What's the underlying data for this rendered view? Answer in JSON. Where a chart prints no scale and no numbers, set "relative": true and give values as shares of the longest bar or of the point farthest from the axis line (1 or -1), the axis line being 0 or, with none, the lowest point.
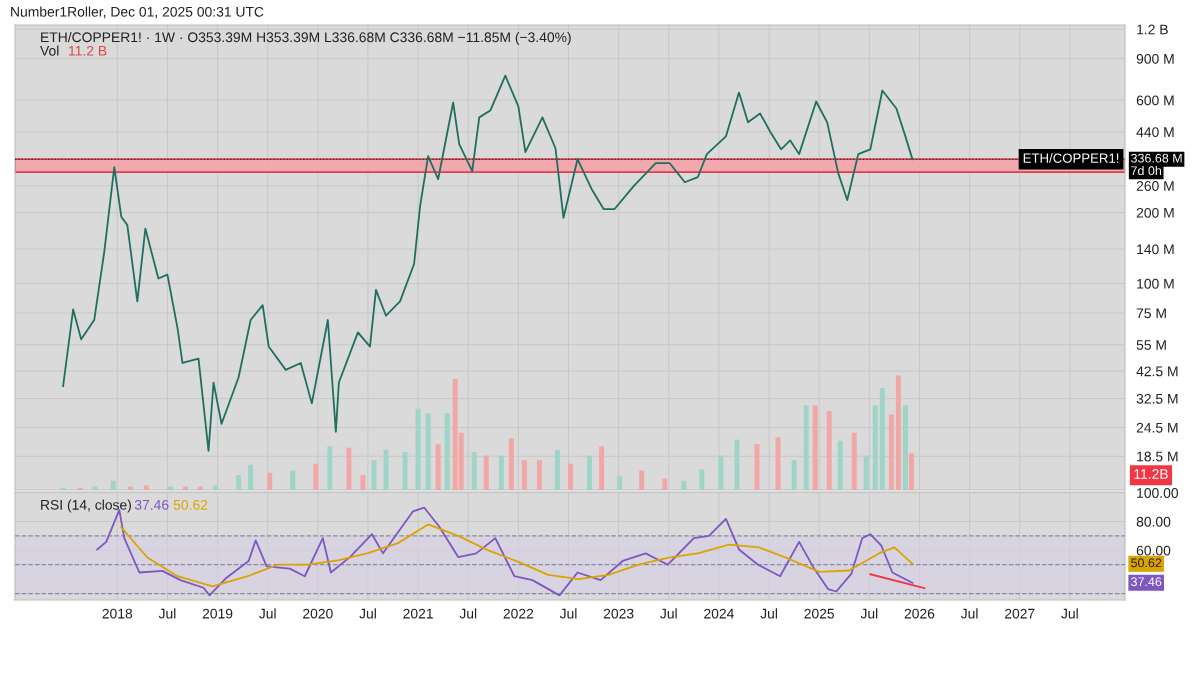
{
  "chart_data": [
    {
      "type": "line",
      "title": "ETH/COPPER1! · 1W · O353.39M H353.39M L336.68M C336.68M −11.85M (−3.40%)",
      "annotations": [
        "Number1Roller, Dec 01, 2025 00:31 UTC",
        "336.68 M",
        "7d 0h"
      ],
      "x": [
        2017.46,
        2017.56,
        2017.64,
        2017.77,
        2017.87,
        2017.97,
        2018.04,
        2018.1,
        2018.2,
        2018.28,
        2018.41,
        2018.5,
        2018.6,
        2018.65,
        2018.81,
        2018.91,
        2018.96,
        2019.04,
        2019.21,
        2019.33,
        2019.45,
        2019.51,
        2019.68,
        2019.83,
        2019.94,
        2020.1,
        2020.18,
        2020.21,
        2020.4,
        2020.52,
        2020.58,
        2020.68,
        2020.82,
        2020.96,
        2021.02,
        2021.1,
        2021.2,
        2021.35,
        2021.41,
        2021.54,
        2021.61,
        2021.72,
        2021.87,
        2022.0,
        2022.07,
        2022.24,
        2022.37,
        2022.45,
        2022.59,
        2022.73,
        2022.85,
        2022.96,
        2023.15,
        2023.37,
        2023.51,
        2023.66,
        2023.79,
        2023.88,
        2024.07,
        2024.2,
        2024.29,
        2024.41,
        2024.51,
        2024.62,
        2024.71,
        2024.8,
        2024.97,
        2025.08,
        2025.19,
        2025.28,
        2025.39,
        2025.51,
        2025.63,
        2025.77,
        2025.86,
        2025.93
      ],
      "series": [
        {
          "color": "#1f6f60",
          "values": [
            36700000.0,
            77600000.0,
            58000000.0,
            70000000.0,
            136000000.0,
            312000000.0,
            192000000.0,
            177000000.0,
            84000000.0,
            171000000.0,
            105000000.0,
            109000000.0,
            65000000.0,
            46000000.0,
            48000000.0,
            19500000.0,
            38000000.0,
            25400000.0,
            40000000.0,
            70000000.0,
            81000000.0,
            54000000.0,
            43000000.0,
            46000000.0,
            31000000.0,
            70000000.0,
            23500000.0,
            38000000.0,
            62000000.0,
            54000000.0,
            94000000.0,
            73000000.0,
            84000000.0,
            121000000.0,
            213000000.0,
            347000000.0,
            277000000.0,
            586000000.0,
            390000000.0,
            300000000.0,
            507000000.0,
            542000000.0,
            762000000.0,
            564000000.0,
            361000000.0,
            507000000.0,
            375000000.0,
            190000000.0,
            337000000.0,
            252000000.0,
            207000000.0,
            207000000.0,
            259000000.0,
            324000000.0,
            324000000.0,
            269000000.0,
            283000000.0,
            354000000.0,
            421000000.0,
            646000000.0,
            483000000.0,
            527000000.0,
            442000000.0,
            371000000.0,
            405000000.0,
            354000000.0,
            592000000.0,
            483000000.0,
            294000000.0,
            226000000.0,
            354000000.0,
            371000000.0,
            659000000.0,
            553000000.0,
            421000000.0,
            336680000.0
          ]
        }
      ],
      "log": "y",
      "ylim": [
        13300000.0,
        1250000000.0
      ],
      "yticks": [
        {
          "value": 18500000.0,
          "label": "18.5 M"
        },
        {
          "value": 24500000.0,
          "label": "24.5 M"
        },
        {
          "value": 32500000.0,
          "label": "32.5 M"
        },
        {
          "value": 42500000.0,
          "label": "42.5 M"
        },
        {
          "value": 55000000.0,
          "label": "55 M"
        },
        {
          "value": 75000000.0,
          "label": "75 M"
        },
        {
          "value": 100000000.0,
          "label": "100 M"
        },
        {
          "value": 140000000.0,
          "label": "140 M"
        },
        {
          "value": 200000000.0,
          "label": "200 M"
        },
        {
          "value": 260000000.0,
          "label": "260 M"
        },
        {
          "value": 440000000.0,
          "label": "440 M"
        },
        {
          "value": 600000000.0,
          "label": "600 M"
        },
        {
          "value": 900000000.0,
          "label": "900 M"
        },
        {
          "value": 1200000000.0,
          "label": "1.2 B"
        }
      ],
      "xlim": [
        2016.98,
        2028.05
      ],
      "xticks": [
        {
          "value": 2018,
          "label": null
        },
        {
          "value": 2018.5,
          "label": null
        },
        {
          "value": 2019,
          "label": null
        },
        {
          "value": 2019.5,
          "label": null
        },
        {
          "value": 2020,
          "label": null
        },
        {
          "value": 2020.5,
          "label": null
        },
        {
          "value": 2021,
          "label": null
        },
        {
          "value": 2021.5,
          "label": null
        },
        {
          "value": 2022,
          "label": null
        },
        {
          "value": 2022.5,
          "label": null
        },
        {
          "value": 2023,
          "label": null
        },
        {
          "value": 2023.5,
          "label": null
        },
        {
          "value": 2024,
          "label": null
        },
        {
          "value": 2024.5,
          "label": null
        },
        {
          "value": 2025,
          "label": null
        },
        {
          "value": 2025.5,
          "label": null
        },
        {
          "value": 2026,
          "label": null
        },
        {
          "value": 2026.5,
          "label": null
        },
        {
          "value": 2027,
          "label": null
        },
        {
          "value": 2027.5,
          "label": null
        }
      ],
      "tick_labels": "y",
      "grid": true,
      "ref_lines": [
        {
          "axis": "y",
          "value": 336680000.0,
          "label": "ETH/COPPER1!",
          "line_style": "dotted",
          "color": "#333333"
        }
      ],
      "bands": [
        {
          "axis": "y",
          "from": 297000000.0,
          "to": 337000000.0,
          "color": "#f4a3ab"
        }
      ]
    },
    {
      "type": "bar",
      "relative": true,
      "annotations": [
        "Vol",
        "11.2 B",
        "11.2B"
      ],
      "x": [
        2017.46,
        2017.63,
        2017.78,
        2017.96,
        2018.13,
        2018.29,
        2018.53,
        2018.68,
        2018.83,
        2018.98,
        2019.21,
        2019.33,
        2019.52,
        2019.75,
        2019.98,
        2020.12,
        2020.31,
        2020.45,
        2020.56,
        2020.68,
        2020.87,
        2021.0,
        2021.1,
        2021.2,
        2021.29,
        2021.37,
        2021.43,
        2021.56,
        2021.68,
        2021.83,
        2021.93,
        2022.06,
        2022.21,
        2022.39,
        2022.52,
        2022.71,
        2022.83,
        2023.01,
        2023.23,
        2023.46,
        2023.65,
        2023.83,
        2024.02,
        2024.18,
        2024.38,
        2024.59,
        2024.75,
        2024.87,
        2024.96,
        2025.1,
        2025.21,
        2025.35,
        2025.47,
        2025.56,
        2025.63,
        2025.72,
        2025.79,
        2025.86,
        2025.92
      ],
      "values": [
        0.02,
        0.02,
        0.03,
        0.08,
        0.03,
        0.04,
        0.03,
        0.03,
        0.03,
        0.04,
        0.13,
        0.22,
        0.15,
        0.17,
        0.23,
        0.38,
        0.37,
        0.13,
        0.26,
        0.35,
        0.33,
        0.71,
        0.67,
        0.4,
        0.67,
        0.97,
        0.5,
        0.33,
        0.3,
        0.3,
        0.45,
        0.26,
        0.26,
        0.35,
        0.23,
        0.3,
        0.38,
        0.12,
        0.17,
        0.1,
        0.08,
        0.18,
        0.3,
        0.44,
        0.4,
        0.46,
        0.26,
        0.74,
        0.74,
        0.69,
        0.43,
        0.5,
        0.3,
        0.74,
        0.89,
        0.66,
        1,
        0.74,
        0.32
      ],
      "colors": [
        "#9fd4c9",
        "#f2a7a7",
        "#9fd4c9",
        "#9fd4c9",
        "#f2a7a7",
        "#f2a7a7",
        "#9fd4c9",
        "#f2a7a7",
        "#f2a7a7",
        "#9fd4c9",
        "#9fd4c9",
        "#9fd4c9",
        "#f2a7a7",
        "#9fd4c9",
        "#f2a7a7",
        "#9fd4c9",
        "#f2a7a7",
        "#f2a7a7",
        "#9fd4c9",
        "#9fd4c9",
        "#9fd4c9",
        "#9fd4c9",
        "#9fd4c9",
        "#f2a7a7",
        "#9fd4c9",
        "#f2a7a7",
        "#f2a7a7",
        "#9fd4c9",
        "#f2a7a7",
        "#9fd4c9",
        "#f2a7a7",
        "#f2a7a7",
        "#f2a7a7",
        "#9fd4c9",
        "#f2a7a7",
        "#9fd4c9",
        "#f2a7a7",
        "#9fd4c9",
        "#f2a7a7",
        "#f2a7a7",
        "#9fd4c9",
        "#9fd4c9",
        "#9fd4c9",
        "#9fd4c9",
        "#f2a7a7",
        "#f2a7a7",
        "#9fd4c9",
        "#9fd4c9",
        "#f2a7a7",
        "#f2a7a7",
        "#9fd4c9",
        "#f2a7a7",
        "#9fd4c9",
        "#9fd4c9",
        "#9fd4c9",
        "#f2a7a7",
        "#f2a7a7",
        "#9fd4c9",
        "#f2a7a7"
      ],
      "xlim": [
        2016.98,
        2028.05
      ],
      "tick_labels": false
    },
    {
      "type": "line",
      "title": "RSI (14, close)",
      "annotations": [
        "37.46",
        "50.62",
        "50.62",
        "37.46"
      ],
      "series": [
        {
          "color": "#7e57c2",
          "x": [
            2017.8,
            2017.89,
            2018.02,
            2018.07,
            2018.22,
            2018.45,
            2018.63,
            2018.86,
            2018.92,
            2019.08,
            2019.31,
            2019.38,
            2019.49,
            2019.72,
            2019.87,
            2020.05,
            2020.13,
            2020.32,
            2020.54,
            2020.65,
            2020.95,
            2021.06,
            2021.21,
            2021.4,
            2021.58,
            2021.77,
            2021.96,
            2022.14,
            2022.41,
            2022.59,
            2022.82,
            2023.04,
            2023.27,
            2023.49,
            2023.75,
            2023.9,
            2024.07,
            2024.2,
            2024.39,
            2024.61,
            2024.8,
            2024.95,
            2025.09,
            2025.17,
            2025.32,
            2025.43,
            2025.51,
            2025.62,
            2025.73,
            2025.93
          ],
          "values": [
            60.6,
            65.9,
            88.1,
            68.5,
            44.6,
            45.7,
            39.3,
            34.0,
            28.7,
            40.4,
            52.6,
            66.9,
            48.9,
            47.3,
            42.0,
            68.5,
            44.6,
            55.3,
            71.2,
            57.9,
            87.1,
            89.7,
            76.5,
            55.3,
            57.9,
            68.5,
            42.0,
            39.3,
            28.7,
            44.6,
            39.3,
            52.6,
            57.9,
            50.0,
            68.5,
            70.1,
            81.8,
            60.6,
            50.0,
            42.0,
            65.9,
            47.3,
            33.0,
            31.4,
            43.6,
            68.5,
            71.2,
            63.2,
            44.6,
            37.46
          ]
        },
        {
          "color": "#dba400",
          "x": [
            2018.04,
            2018.3,
            2018.6,
            2018.95,
            2019.3,
            2019.6,
            2019.9,
            2020.2,
            2020.5,
            2020.8,
            2021.1,
            2021.4,
            2021.7,
            2022.0,
            2022.3,
            2022.6,
            2022.9,
            2023.2,
            2023.5,
            2023.8,
            2024.1,
            2024.4,
            2024.7,
            2025.0,
            2025.3,
            2025.6,
            2025.75,
            2025.93
          ],
          "values": [
            76,
            55,
            42,
            35,
            42,
            50,
            50,
            53,
            58,
            65,
            78,
            70,
            60,
            52,
            43,
            40,
            43,
            50,
            55,
            58,
            64,
            62,
            54,
            45,
            46,
            58,
            62,
            50.62
          ]
        },
        {
          "color": "#f23645",
          "x": [
            2025.51,
            2026.05
          ],
          "values": [
            43.4,
            33.8
          ]
        }
      ],
      "ylim": [
        25.5,
        100.5
      ],
      "yticks": [
        {
          "value": 100,
          "label": "100.00"
        },
        {
          "value": 80,
          "label": "80.00"
        },
        {
          "value": 60,
          "label": "60.00"
        }
      ],
      "xlim": [
        2016.98,
        2028.05
      ],
      "xticks": [
        2018,
        {
          "value": 2018.5,
          "label": "Jul"
        },
        2019,
        {
          "value": 2019.5,
          "label": "Jul"
        },
        2020,
        {
          "value": 2020.5,
          "label": "Jul"
        },
        2021,
        {
          "value": 2021.5,
          "label": "Jul"
        },
        2022,
        {
          "value": 2022.5,
          "label": "Jul"
        },
        2023,
        {
          "value": 2023.5,
          "label": "Jul"
        },
        2024,
        {
          "value": 2024.5,
          "label": "Jul"
        },
        2025,
        {
          "value": 2025.5,
          "label": "Jul"
        },
        2026,
        {
          "value": 2026.5,
          "label": "Jul"
        },
        2027,
        {
          "value": 2027.5,
          "label": "Jul"
        }
      ],
      "grid": true,
      "ref_lines": [
        {
          "axis": "y",
          "value": 70,
          "line_style": "dashed",
          "color": "#8a8aa0"
        },
        {
          "axis": "y",
          "value": 50,
          "line_style": "dashed",
          "color": "#8a8aa0"
        },
        {
          "axis": "y",
          "value": 30,
          "line_style": "dashed",
          "color": "#8a8aa0"
        }
      ],
      "bands": [
        {
          "axis": "y",
          "from": 30,
          "to": 70,
          "color": "#d6cfe6"
        }
      ]
    }
  ]
}
